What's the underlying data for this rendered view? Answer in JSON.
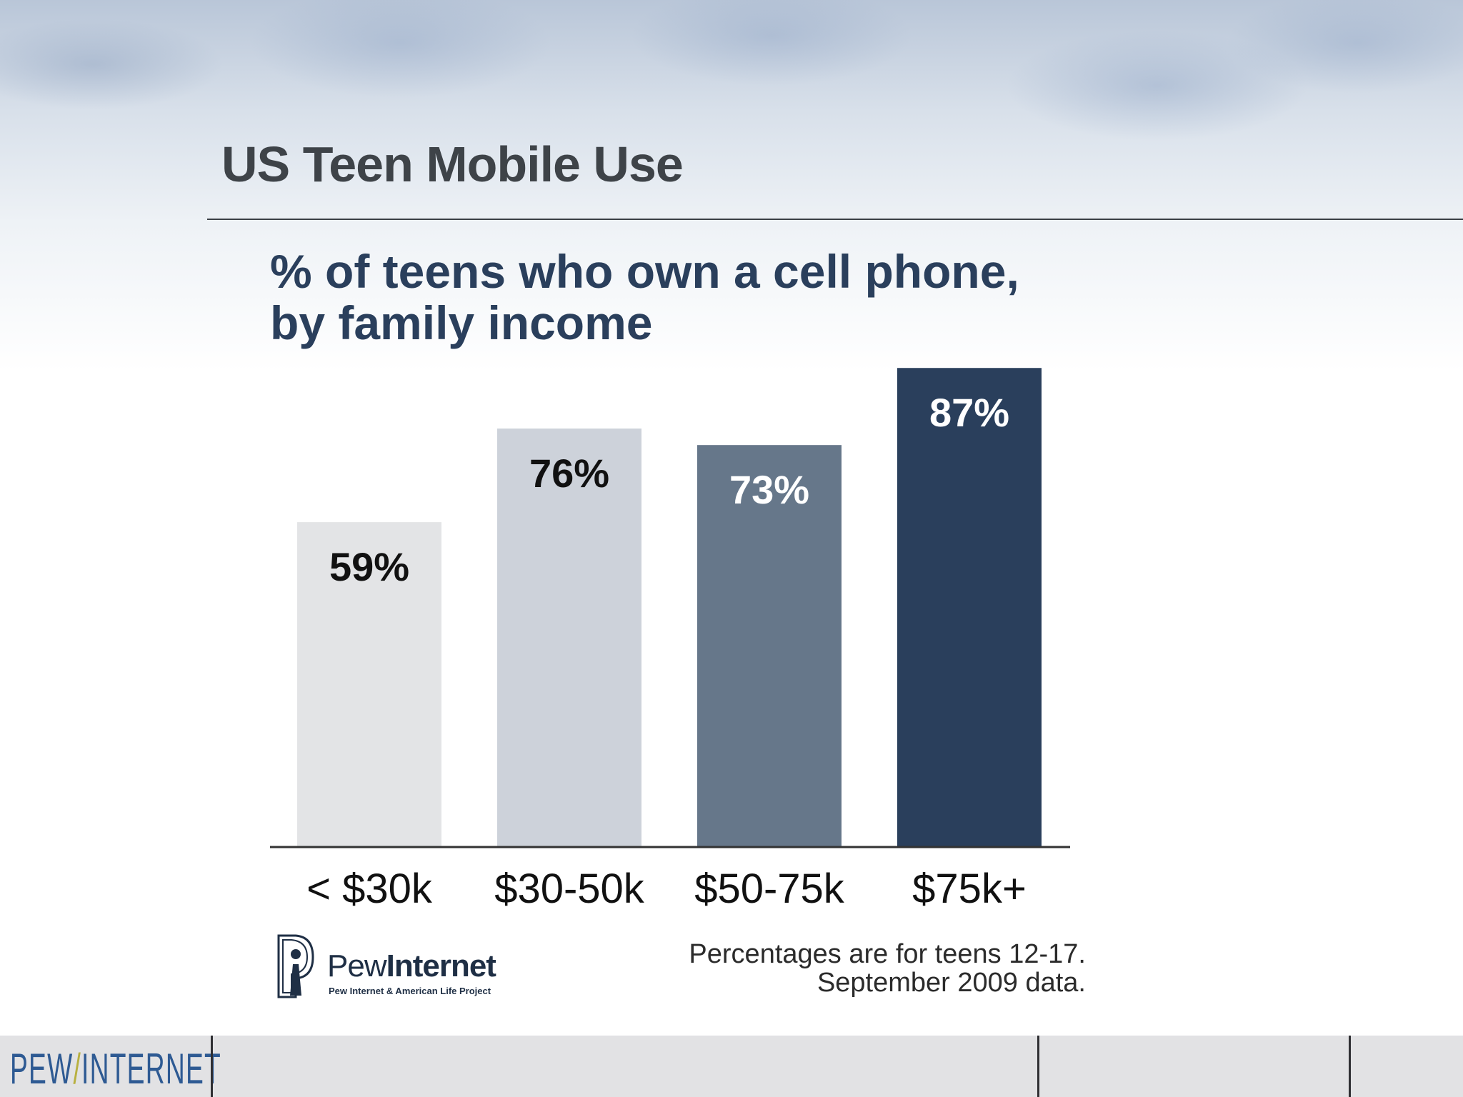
{
  "header": {
    "title": "US Teen Mobile Use"
  },
  "chart_data": {
    "type": "bar",
    "title_lines": [
      "% of teens who own a cell phone,",
      "by family income"
    ],
    "categories": [
      "< $30k",
      "$30-50k",
      "$50-75k",
      "$75k+"
    ],
    "values": [
      59,
      76,
      73,
      87
    ],
    "value_labels": [
      "59%",
      "76%",
      "73%",
      "87%"
    ],
    "bar_colors": [
      "#e3e4e6",
      "#cdd2da",
      "#66778a",
      "#2a3f5c"
    ],
    "label_colors": [
      "#111111",
      "#111111",
      "#ffffff",
      "#ffffff"
    ],
    "ylim": [
      0,
      100
    ],
    "grid": false,
    "legend": "none"
  },
  "logo": {
    "word1": "Pew",
    "word2": "Internet",
    "subtitle": "Pew Internet & American Life Project"
  },
  "note": {
    "line1": "Percentages are for teens 12-17.",
    "line2": "September 2009 data."
  },
  "footer": {
    "logo_left": "PEW",
    "logo_slash": "/",
    "logo_right": "INTERNET",
    "logo_color": "#2e5a93",
    "slash_color": "#b8b040"
  }
}
